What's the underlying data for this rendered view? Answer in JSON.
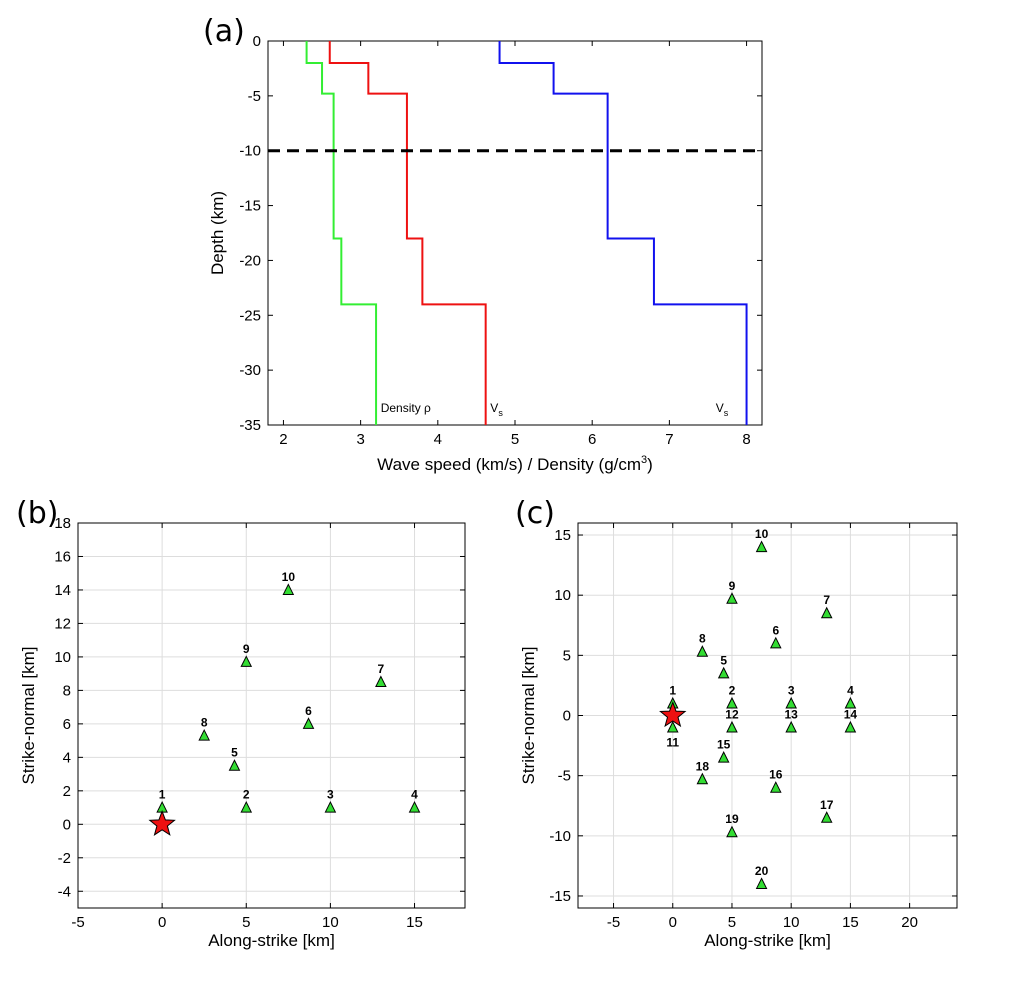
{
  "panel_labels": {
    "a": "(a)",
    "b": "(b)",
    "c": "(c)"
  },
  "colors": {
    "density": "#33ee33",
    "vs_red": "#ee1111",
    "vs_blue": "#1111ee",
    "station": "#33dd33",
    "epicenter": "#ee1111",
    "grid": "#dddddd"
  },
  "chart_data": [
    {
      "id": "a",
      "type": "line",
      "xlabel": "Wave speed (km/s) / Density (g/cm",
      "xlabel_sup": "3",
      "xlabel_end": ")",
      "ylabel": "Depth (km)",
      "xlim": [
        1.8,
        8.2
      ],
      "ylim": [
        -35,
        0
      ],
      "xticks": [
        2,
        3,
        4,
        5,
        6,
        7,
        8
      ],
      "yticks": [
        0,
        -5,
        -10,
        -15,
        -20,
        -25,
        -30,
        -35
      ],
      "grid": false,
      "dashed_line_depth": -10,
      "series": [
        {
          "name": "Density ρ",
          "color_key": "density",
          "points": [
            [
              2.3,
              0
            ],
            [
              2.3,
              -2
            ],
            [
              2.5,
              -2
            ],
            [
              2.5,
              -4.8
            ],
            [
              2.65,
              -4.8
            ],
            [
              2.65,
              -18
            ],
            [
              2.75,
              -18
            ],
            [
              2.75,
              -24
            ],
            [
              3.2,
              -24
            ],
            [
              3.2,
              -35
            ]
          ]
        },
        {
          "name": "Vs",
          "color_key": "vs_red",
          "points": [
            [
              2.6,
              0
            ],
            [
              2.6,
              -2
            ],
            [
              3.1,
              -2
            ],
            [
              3.1,
              -4.8
            ],
            [
              3.6,
              -4.8
            ],
            [
              3.6,
              -18
            ],
            [
              3.8,
              -18
            ],
            [
              3.8,
              -24
            ],
            [
              4.62,
              -24
            ],
            [
              4.62,
              -35
            ]
          ]
        },
        {
          "name": "Vs",
          "color_key": "vs_blue",
          "points": [
            [
              4.8,
              0
            ],
            [
              4.8,
              -2
            ],
            [
              5.5,
              -2
            ],
            [
              5.5,
              -4.8
            ],
            [
              6.2,
              -4.8
            ],
            [
              6.2,
              -18
            ],
            [
              6.8,
              -18
            ],
            [
              6.8,
              -24
            ],
            [
              8.0,
              -24
            ],
            [
              8.0,
              -35
            ]
          ]
        }
      ],
      "annotations": [
        {
          "text": "Density ρ",
          "x": 3.26,
          "y": -33.8
        },
        {
          "text": "V",
          "sub": "s",
          "x": 4.68,
          "y": -33.8
        },
        {
          "text": "V",
          "sub": "s",
          "x": 7.6,
          "y": -33.8
        }
      ]
    },
    {
      "id": "b",
      "type": "scatter",
      "xlabel": "Along-strike [km]",
      "ylabel": "Strike-normal [km]",
      "xlim": [
        -5,
        18
      ],
      "ylim": [
        -5,
        18
      ],
      "xticks": [
        -5,
        0,
        5,
        10,
        15
      ],
      "yticks": [
        -4,
        -2,
        0,
        2,
        4,
        6,
        8,
        10,
        12,
        14,
        16,
        18
      ],
      "grid": true,
      "epicenter": [
        0,
        0
      ],
      "stations": [
        {
          "label": "1",
          "x": 0,
          "y": 1
        },
        {
          "label": "2",
          "x": 5,
          "y": 1
        },
        {
          "label": "3",
          "x": 10,
          "y": 1
        },
        {
          "label": "4",
          "x": 15,
          "y": 1
        },
        {
          "label": "5",
          "x": 4.3,
          "y": 3.5
        },
        {
          "label": "6",
          "x": 8.7,
          "y": 6
        },
        {
          "label": "7",
          "x": 13,
          "y": 8.5
        },
        {
          "label": "8",
          "x": 2.5,
          "y": 5.3
        },
        {
          "label": "9",
          "x": 5,
          "y": 9.7
        },
        {
          "label": "10",
          "x": 7.5,
          "y": 14
        }
      ]
    },
    {
      "id": "c",
      "type": "scatter",
      "xlabel": "Along-strike [km]",
      "ylabel": "Strike-normal [km]",
      "xlim": [
        -8,
        24
      ],
      "ylim": [
        -16,
        16
      ],
      "xticks": [
        -5,
        0,
        5,
        10,
        15,
        20
      ],
      "yticks": [
        15,
        10,
        5,
        0,
        -5,
        -10,
        -15
      ],
      "grid": true,
      "epicenter": [
        0,
        0
      ],
      "stations": [
        {
          "label": "1",
          "x": 0,
          "y": 1,
          "pos": "above"
        },
        {
          "label": "2",
          "x": 5,
          "y": 1,
          "pos": "above"
        },
        {
          "label": "3",
          "x": 10,
          "y": 1,
          "pos": "above"
        },
        {
          "label": "4",
          "x": 15,
          "y": 1,
          "pos": "above"
        },
        {
          "label": "5",
          "x": 4.3,
          "y": 3.5,
          "pos": "above"
        },
        {
          "label": "6",
          "x": 8.7,
          "y": 6,
          "pos": "above"
        },
        {
          "label": "7",
          "x": 13,
          "y": 8.5,
          "pos": "above"
        },
        {
          "label": "8",
          "x": 2.5,
          "y": 5.3,
          "pos": "above"
        },
        {
          "label": "9",
          "x": 5,
          "y": 9.7,
          "pos": "above"
        },
        {
          "label": "10",
          "x": 7.5,
          "y": 14,
          "pos": "above"
        },
        {
          "label": "11",
          "x": 0,
          "y": -1,
          "pos": "below"
        },
        {
          "label": "12",
          "x": 5,
          "y": -1,
          "pos": "above"
        },
        {
          "label": "13",
          "x": 10,
          "y": -1,
          "pos": "above"
        },
        {
          "label": "14",
          "x": 15,
          "y": -1,
          "pos": "above"
        },
        {
          "label": "15",
          "x": 4.3,
          "y": -3.5,
          "pos": "above"
        },
        {
          "label": "16",
          "x": 8.7,
          "y": -6,
          "pos": "above"
        },
        {
          "label": "17",
          "x": 13,
          "y": -8.5,
          "pos": "above"
        },
        {
          "label": "18",
          "x": 2.5,
          "y": -5.3,
          "pos": "above"
        },
        {
          "label": "19",
          "x": 5,
          "y": -9.7,
          "pos": "above"
        },
        {
          "label": "20",
          "x": 7.5,
          "y": -14,
          "pos": "above"
        }
      ]
    }
  ]
}
